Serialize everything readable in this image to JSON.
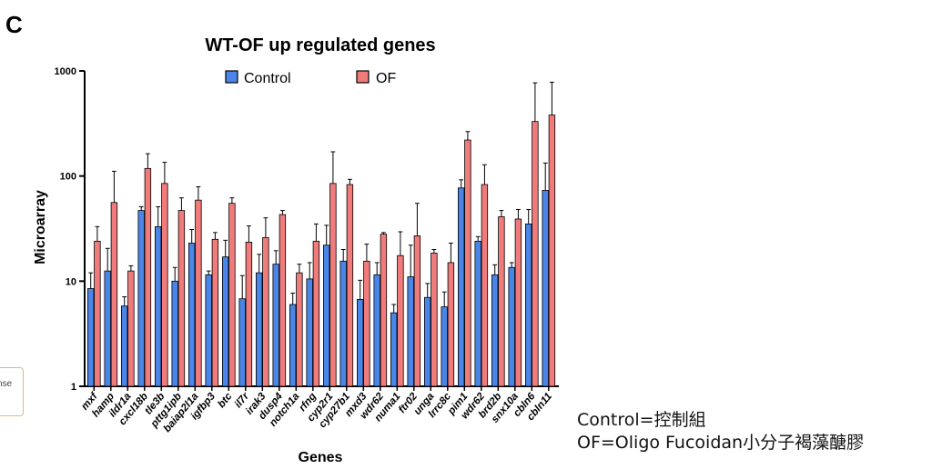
{
  "panel_label": "C",
  "side_fragment": "nse",
  "notes": {
    "line1": "Control=控制組",
    "line2": "OF=Oligo Fucoidan小分子褐藻醣膠"
  },
  "colors": {
    "control": "#4a86e8",
    "of": "#ef7b7b",
    "axis": "#000000"
  },
  "chart_data": {
    "type": "bar",
    "title": "WT-OF up regulated genes",
    "xlabel": "Genes",
    "ylabel": "Microarray",
    "yscale": "log",
    "ylim": [
      1,
      1000
    ],
    "yticks": [
      1,
      10,
      100,
      1000
    ],
    "yticklabels": [
      "1",
      "10",
      "100",
      "1000"
    ],
    "legend_position": "top",
    "categories": [
      "mxf",
      "hamp",
      "ildr1a",
      "cxcl18b",
      "tle3b",
      "pttg1ipb",
      "baiap2l1a",
      "igfbp3",
      "btc",
      "il7r",
      "irak3",
      "dusp4",
      "notch1a",
      "rfng",
      "cyp2r1",
      "cyp27b1",
      "mxd3",
      "wdr62",
      "numa1",
      "ftr02",
      "unga",
      "lrrc8c",
      "pim1",
      "wdr62",
      "brd2b",
      "snx10a",
      "cbln6",
      "cbln11"
    ],
    "series": [
      {
        "name": "Control",
        "values": [
          8.5,
          12.5,
          5.8,
          47,
          33,
          10,
          23,
          11.5,
          17,
          6.8,
          12,
          14.5,
          6,
          10.5,
          22,
          15.5,
          6.7,
          11.5,
          5,
          11,
          7,
          5.7,
          77,
          24,
          11.5,
          13.5,
          35,
          73
        ],
        "errors": [
          3.5,
          8,
          1.3,
          4,
          18,
          3.5,
          8,
          1,
          7.5,
          4.5,
          6,
          5,
          1.7,
          4.5,
          12,
          4.5,
          3.5,
          3.5,
          1,
          11,
          2.5,
          2.2,
          15,
          2.5,
          2.8,
          1.5,
          13,
          60
        ]
      },
      {
        "name": "OF",
        "values": [
          24,
          56,
          12.5,
          118,
          85,
          47,
          59,
          25,
          55,
          23.5,
          26,
          43,
          12,
          24,
          85,
          83,
          15.5,
          28,
          17.5,
          27,
          18.5,
          15,
          220,
          83,
          41,
          39,
          330,
          380
        ],
        "errors": [
          9,
          55,
          1.5,
          45,
          50,
          15,
          20,
          4,
          7,
          10,
          14,
          4,
          2.5,
          11,
          85,
          10,
          7,
          1,
          12,
          28,
          1.5,
          8,
          45,
          45,
          6,
          9,
          440,
          400
        ]
      }
    ]
  }
}
